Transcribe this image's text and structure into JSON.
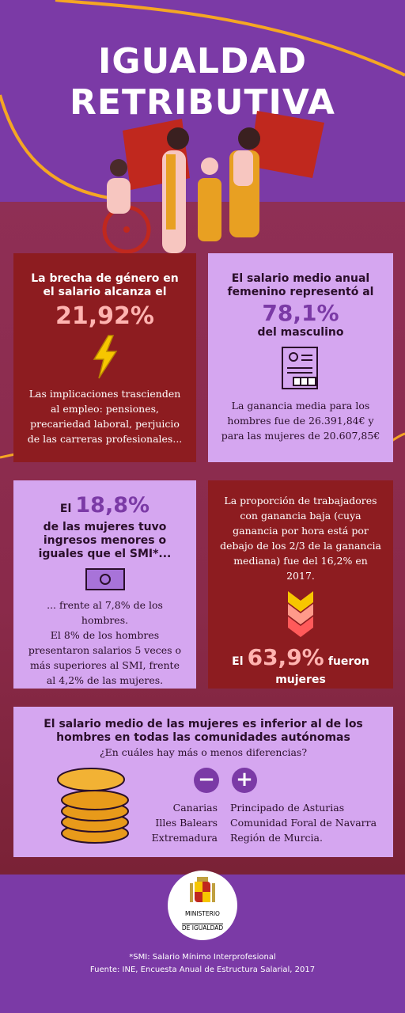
{
  "title": {
    "line1": "IGUALDAD",
    "line2": "RETRIBUTIVA"
  },
  "card1": {
    "heading": "La brecha de género en el salario alcanza el",
    "stat": "21,92%",
    "text": "Las implicaciones trascienden al empleo: pensiones, precariedad laboral, perjuicio de las carreras profesionales..."
  },
  "card2": {
    "heading": "El salario medio anual femenino representó al",
    "stat": "78,1%",
    "subheading": "del masculino",
    "text": "La ganancia media para los hombres fue de 26.391,84€ y para las mujeres de 20.607,85€"
  },
  "card3": {
    "stat_prefix": "El",
    "stat": "18,8%",
    "heading": "de las mujeres tuvo ingresos menores o iguales que el SMI*...",
    "text1": "... frente al 7,8% de los hombres.",
    "text2": "El 8% de los hombres presentaron salarios 5 veces o más superiores al SMI, frente al 4,2% de las mujeres."
  },
  "card4": {
    "text": "La proporción de trabajadores con ganancia baja (cuya ganancia por hora está por debajo de los 2/3 de la ganancia mediana) fue del 16,2% en 2017.",
    "stat_prefix": "El",
    "stat": "63,9%",
    "stat_suffix": "fueron",
    "stat_line2": "mujeres"
  },
  "card5": {
    "heading": "El salario medio de las mujeres es inferior al de los hombres en todas las comunidades autónomas",
    "question": "¿En cuáles hay más o menos diferencias?",
    "minus_regions": [
      "Canarias",
      "Illes Balears",
      "Extremadura"
    ],
    "plus_regions": [
      "Principado de Asturias",
      "Comunidad Foral de Navarra",
      "Región de Murcia."
    ]
  },
  "logo": {
    "line1": "MINISTERIO",
    "line2": "DE IGUALDAD"
  },
  "footer": {
    "note": "*SMI: Salario Mínimo Interprofesional",
    "source": "Fuente: INE, Encuesta Anual de Estructura Salarial, 2017"
  },
  "colors": {
    "purple": "#7b3aa6",
    "dark_red": "#8d1c20",
    "lilac": "#d5a6f0",
    "pink": "#ffb3b0",
    "orange": "#f5a623",
    "yellow": "#f7c600"
  }
}
